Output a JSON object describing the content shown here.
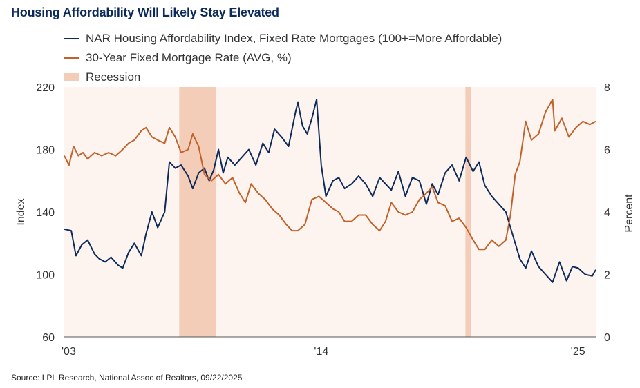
{
  "title": "Housing Affordability Will Likely Stay Elevated",
  "source": "Source: LPL Research, National Assoc of Realtors, 09/22/2025",
  "colors": {
    "navy": "#0b2a5a",
    "orange": "#c0622a",
    "recession": "#f3cdb7",
    "plot_bg": "#fdf3ef"
  },
  "legend": [
    {
      "label": "NAR Housing Affordability Index, Fixed Rate Mortgages (100+=More Affordable)",
      "kind": "line",
      "color": "#0b2a5a"
    },
    {
      "label": "30-Year Fixed Mortgage Rate (AVG, %)",
      "kind": "line",
      "color": "#c0622a"
    },
    {
      "label": "Recession",
      "kind": "box",
      "color": "#f3cdb7"
    }
  ],
  "chart_data": {
    "type": "line",
    "title": "Housing Affordability Will Likely Stay Elevated",
    "xlabel": "",
    "ylabel": "Index",
    "y2label": "Percent",
    "x_range": [
      2003.0,
      2025.75
    ],
    "ylim": [
      60,
      220
    ],
    "y2lim": [
      0,
      8
    ],
    "x_ticks": [
      {
        "x": 2003.0,
        "label": "'03"
      },
      {
        "x": 2014.0,
        "label": "'14"
      },
      {
        "x": 2025.0,
        "label": "'25"
      }
    ],
    "y_ticks": [
      60,
      100,
      140,
      180,
      220
    ],
    "y2_ticks": [
      0,
      2,
      4,
      6,
      8
    ],
    "recessions": [
      [
        2007.92,
        2009.5
      ],
      [
        2020.17,
        2020.42
      ]
    ],
    "series": [
      {
        "name": "NAR Housing Affordability Index, Fixed Rate Mortgages (100+=More Affordable)",
        "axis": "left",
        "color": "#0b2a5a",
        "x": [
          2003.0,
          2003.3,
          2003.5,
          2003.75,
          2004.0,
          2004.3,
          2004.5,
          2004.75,
          2005.0,
          2005.3,
          2005.5,
          2005.75,
          2006.0,
          2006.3,
          2006.5,
          2006.75,
          2007.0,
          2007.3,
          2007.5,
          2007.75,
          2008.0,
          2008.3,
          2008.5,
          2008.75,
          2009.0,
          2009.2,
          2009.4,
          2009.6,
          2009.8,
          2010.0,
          2010.3,
          2010.6,
          2010.9,
          2011.2,
          2011.5,
          2011.75,
          2012.0,
          2012.3,
          2012.6,
          2012.9,
          2013.0,
          2013.2,
          2013.4,
          2013.6,
          2013.8,
          2014.0,
          2014.2,
          2014.5,
          2014.75,
          2015.0,
          2015.3,
          2015.6,
          2015.9,
          2016.2,
          2016.5,
          2016.75,
          2017.0,
          2017.3,
          2017.6,
          2017.9,
          2018.2,
          2018.5,
          2018.75,
          2019.0,
          2019.3,
          2019.6,
          2019.9,
          2020.2,
          2020.5,
          2020.75,
          2021.0,
          2021.3,
          2021.6,
          2021.9,
          2022.2,
          2022.5,
          2022.75,
          2023.0,
          2023.3,
          2023.6,
          2023.9,
          2024.2,
          2024.5,
          2024.75,
          2025.0,
          2025.3,
          2025.6,
          2025.75
        ],
        "y": [
          129,
          128,
          112,
          119,
          122,
          113,
          110,
          108,
          111,
          106,
          104,
          114,
          120,
          112,
          126,
          140,
          130,
          140,
          172,
          168,
          170,
          163,
          155,
          165,
          168,
          160,
          167,
          180,
          165,
          175,
          170,
          175,
          180,
          170,
          184,
          178,
          193,
          188,
          182,
          204,
          210,
          195,
          190,
          200,
          212,
          170,
          150,
          160,
          162,
          155,
          158,
          163,
          158,
          150,
          162,
          158,
          154,
          166,
          150,
          162,
          160,
          145,
          158,
          151,
          165,
          170,
          160,
          175,
          166,
          172,
          157,
          150,
          145,
          140,
          125,
          110,
          104,
          115,
          105,
          100,
          95,
          108,
          96,
          105,
          104,
          100,
          99,
          103
        ],
        "values_scale": "index"
      },
      {
        "name": "30-Year Fixed Mortgage Rate (AVG, %)",
        "axis": "right",
        "color": "#c0622a",
        "x": [
          2003.0,
          2003.2,
          2003.4,
          2003.6,
          2003.8,
          2004.0,
          2004.3,
          2004.6,
          2004.9,
          2005.2,
          2005.5,
          2005.75,
          2006.0,
          2006.3,
          2006.5,
          2006.75,
          2007.0,
          2007.3,
          2007.5,
          2007.75,
          2008.0,
          2008.3,
          2008.5,
          2008.75,
          2009.0,
          2009.3,
          2009.6,
          2009.9,
          2010.2,
          2010.5,
          2010.75,
          2011.0,
          2011.3,
          2011.6,
          2011.9,
          2012.2,
          2012.5,
          2012.75,
          2013.0,
          2013.3,
          2013.6,
          2013.9,
          2014.2,
          2014.5,
          2014.75,
          2015.0,
          2015.3,
          2015.6,
          2015.9,
          2016.2,
          2016.5,
          2016.75,
          2017.0,
          2017.3,
          2017.6,
          2017.9,
          2018.2,
          2018.5,
          2018.75,
          2019.0,
          2019.3,
          2019.6,
          2019.9,
          2020.2,
          2020.5,
          2020.75,
          2021.0,
          2021.3,
          2021.6,
          2021.9,
          2022.1,
          2022.3,
          2022.5,
          2022.75,
          2023.0,
          2023.3,
          2023.6,
          2023.9,
          2024.0,
          2024.3,
          2024.6,
          2024.9,
          2025.2,
          2025.5,
          2025.75
        ],
        "y": [
          5.8,
          5.5,
          6.1,
          5.8,
          5.9,
          5.7,
          5.9,
          5.8,
          5.9,
          5.8,
          6.0,
          6.2,
          6.3,
          6.6,
          6.7,
          6.4,
          6.3,
          6.2,
          6.7,
          6.4,
          5.9,
          6.0,
          6.5,
          6.1,
          5.2,
          5.0,
          5.2,
          4.9,
          5.1,
          4.6,
          4.3,
          4.9,
          4.6,
          4.4,
          4.1,
          3.9,
          3.6,
          3.4,
          3.4,
          3.6,
          4.4,
          4.5,
          4.3,
          4.1,
          4.0,
          3.7,
          3.7,
          3.9,
          3.9,
          3.6,
          3.4,
          3.7,
          4.3,
          4.0,
          3.9,
          4.0,
          4.4,
          4.6,
          4.8,
          4.3,
          4.2,
          3.7,
          3.8,
          3.5,
          3.1,
          2.8,
          2.8,
          3.1,
          2.9,
          3.1,
          3.9,
          5.2,
          5.6,
          6.9,
          6.3,
          6.5,
          7.2,
          7.6,
          6.6,
          7.0,
          6.4,
          6.7,
          6.9,
          6.8,
          6.9
        ]
      }
    ]
  },
  "x_tick_labels": [
    "'03",
    "'14",
    "'25"
  ],
  "ylabel": "Index",
  "y2label": "Percent"
}
